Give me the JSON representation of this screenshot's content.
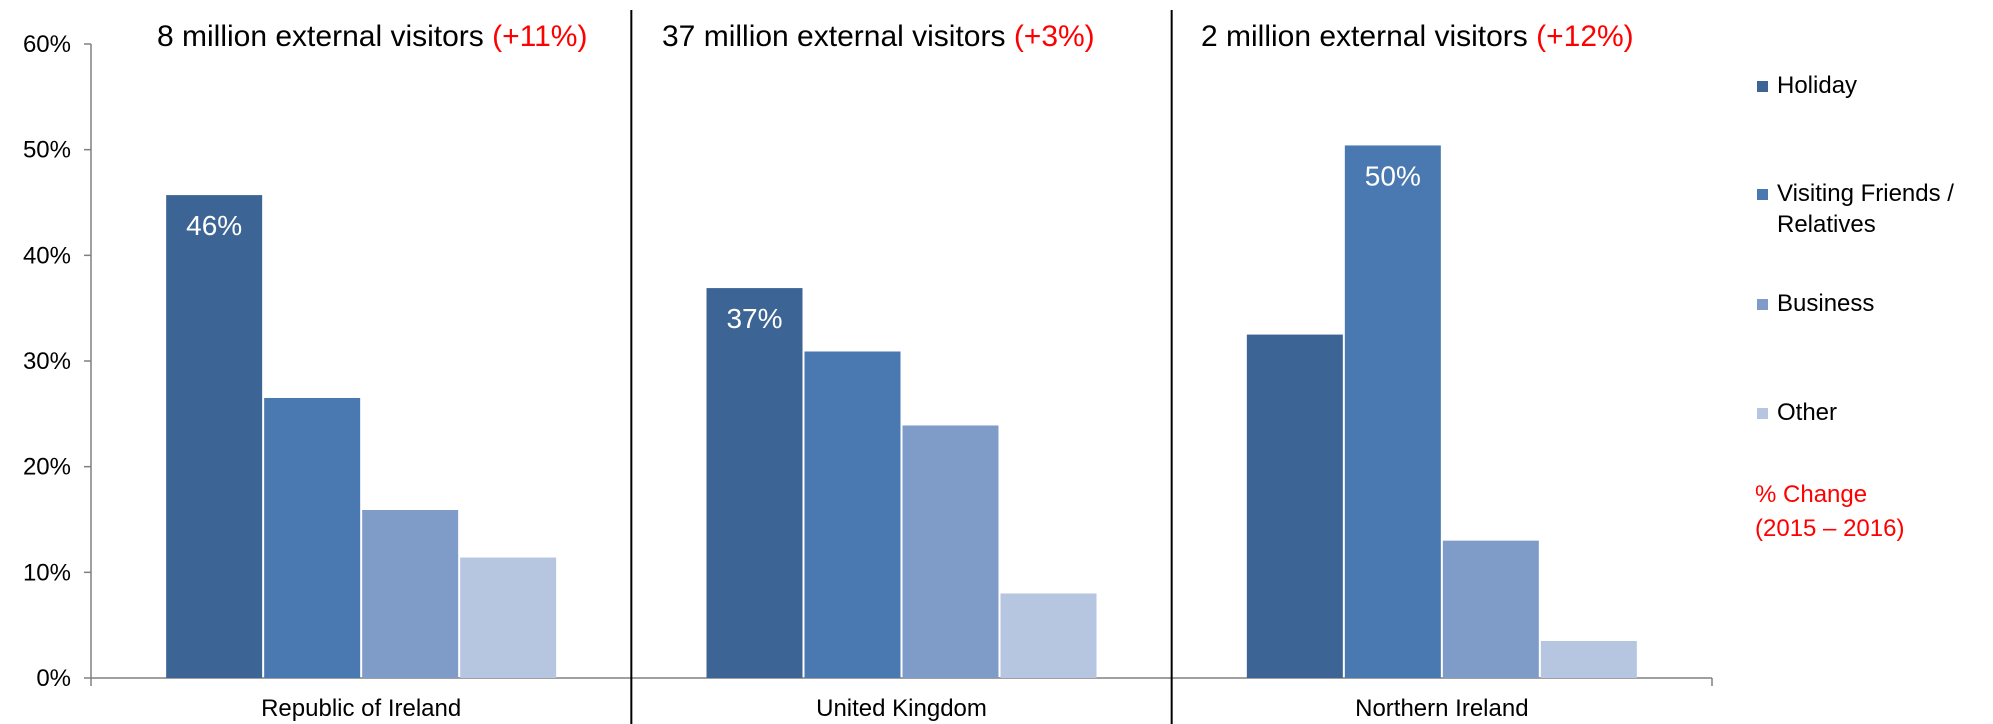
{
  "panels": [
    {
      "visitors": "8 million external visitors",
      "change": "(+11%)"
    },
    {
      "visitors": "37 million external visitors",
      "change": "(+3%)"
    },
    {
      "visitors": "2 million external visitors",
      "change": "(+12%)"
    }
  ],
  "legend_note": {
    "line1": "% Change",
    "line2": "(2015 – 2016)"
  },
  "colors": {
    "Holiday": "#3c6494",
    "Visiting Friends / Relatives": "#4a78b0",
    "Business": "#7f9cc9",
    "Other": "#b6c5e0",
    "change": "#ff0000"
  },
  "chart_data": {
    "type": "bar",
    "categories": [
      "Republic of Ireland",
      "United Kingdom",
      "Northern Ireland"
    ],
    "series": [
      {
        "name": "Holiday",
        "values": [
          45.7,
          36.9,
          32.5
        ]
      },
      {
        "name": "Visiting Friends / Relatives",
        "values": [
          26.5,
          30.9,
          50.4
        ]
      },
      {
        "name": "Business",
        "values": [
          15.9,
          23.9,
          13.0
        ]
      },
      {
        "name": "Other",
        "values": [
          11.4,
          8.0,
          3.5
        ]
      }
    ],
    "data_labels": [
      {
        "category": "Republic of Ireland",
        "series": "Holiday",
        "text": "46%"
      },
      {
        "category": "United Kingdom",
        "series": "Holiday",
        "text": "37%"
      },
      {
        "category": "Northern Ireland",
        "series": "Visiting Friends / Relatives",
        "text": "50%"
      }
    ],
    "y_ticks": [
      "0%",
      "10%",
      "20%",
      "30%",
      "40%",
      "50%",
      "60%"
    ],
    "ylim": [
      0,
      60
    ],
    "grid": false,
    "legend_position": "right"
  }
}
